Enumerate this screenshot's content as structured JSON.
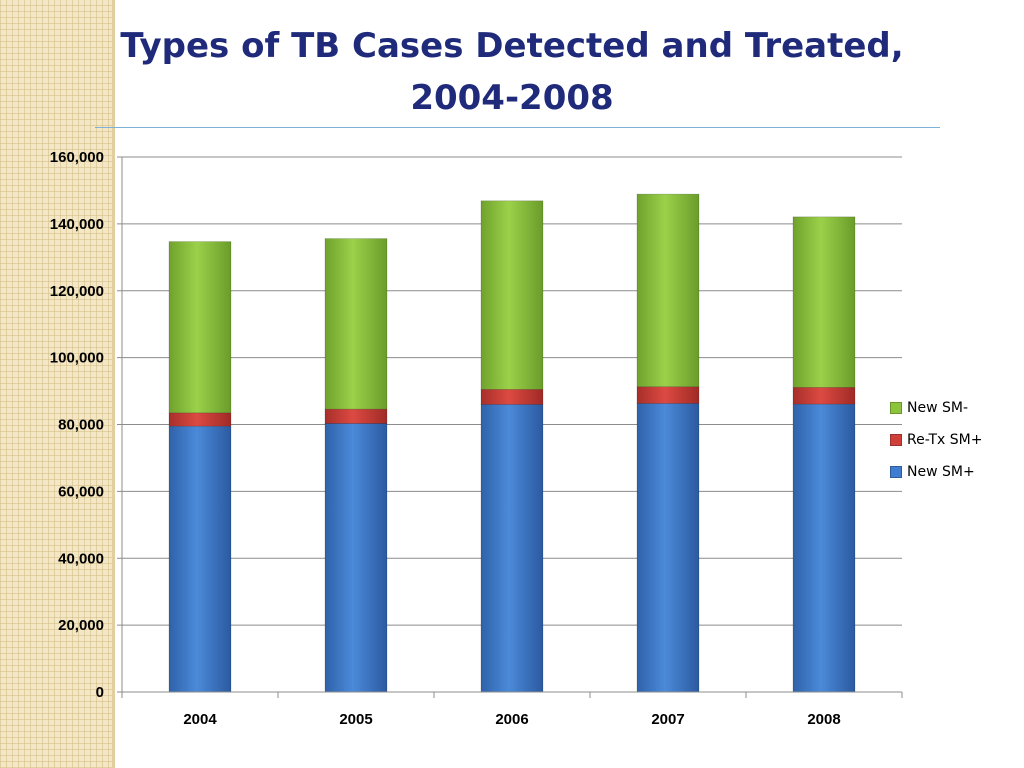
{
  "chart_data": {
    "type": "bar",
    "stacked": true,
    "title": "Types of TB Cases Detected and Treated, 2004-2008",
    "categories": [
      "2004",
      "2005",
      "2006",
      "2007",
      "2008"
    ],
    "series": [
      {
        "name": "New SM+",
        "color": "#3f7dd0",
        "values": [
          79500,
          80300,
          86000,
          86300,
          86100
        ]
      },
      {
        "name": "Re-Tx SM+",
        "color": "#d0403a",
        "values": [
          4000,
          4300,
          4500,
          5000,
          5000
        ]
      },
      {
        "name": "New SM-",
        "color": "#8cc43c",
        "values": [
          51200,
          51000,
          56400,
          57600,
          51000
        ]
      }
    ],
    "ylim": [
      0,
      160000
    ],
    "yticks": [
      "0",
      "20,000",
      "40,000",
      "60,000",
      "80,000",
      "100,000",
      "120,000",
      "140,000",
      "160,000"
    ],
    "grid": true,
    "legend_position": "right"
  }
}
